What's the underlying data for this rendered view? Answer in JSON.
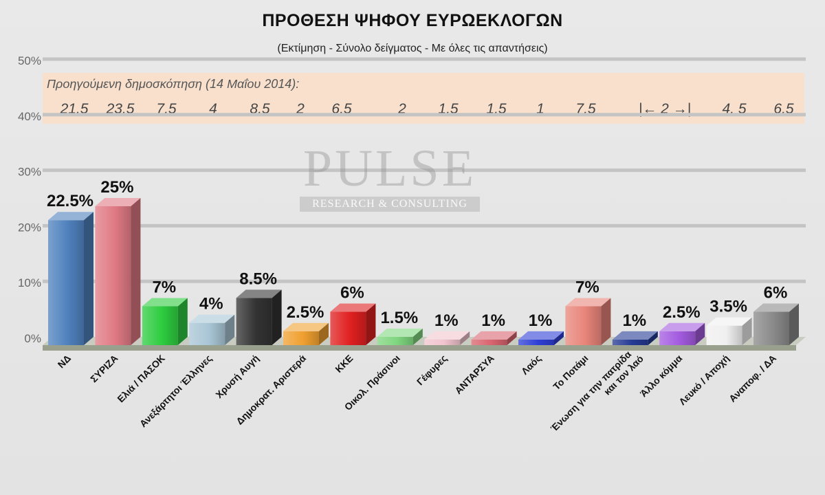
{
  "title": "ΠΡΟΘΕΣΗ ΨΗΦΟΥ ΕΥΡΩΕΚΛΟΓΩΝ",
  "subtitle": "(Εκτίμηση - Σύνολο δείγματος - Με όλες τις απαντήσεις)",
  "previous_poll": {
    "label": "Προηγούμενη δημοσκόπηση  (14 Μαΐου 2014):",
    "values": [
      "21.5",
      "23.5",
      "7.5",
      "4",
      "8.5",
      "2",
      "6.5",
      "2",
      "1.5",
      "1.5",
      "1",
      "7.5",
      "|← 2 →|",
      "4. 5",
      "6.5"
    ]
  },
  "watermark": {
    "main": "PULSE",
    "sub": "RESEARCH & CONSULTING"
  },
  "chart_data": {
    "type": "bar",
    "title": "ΠΡΟΘΕΣΗ ΨΗΦΟΥ ΕΥΡΩΕΚΛΟΓΩΝ",
    "subtitle": "(Εκτίμηση - Σύνολο δείγματος - Με όλες τις απαντήσεις)",
    "categories": [
      "ΝΔ",
      "ΣΥΡΙΖΑ",
      "Ελιά / ΠΑΣΟΚ",
      "Ανεξάρτητοι Έλληνες",
      "Χρυσή Αυγή",
      "Δημοκρατ. Αριστερά",
      "ΚΚΕ",
      "Οικολ. Πράσινοι",
      "Γέφυρες",
      "ΑΝΤΑΡΣΥΑ",
      "Λαός",
      "Το Ποτάμι",
      "Ένωση για την πατρίδα και τον λαό",
      "Άλλο κόμμα",
      "Λευκό / Αποχή",
      "Αναποφ. / ΔΑ"
    ],
    "values": [
      22.5,
      25,
      7,
      4,
      8.5,
      2.5,
      6,
      1.5,
      1,
      1,
      1,
      7,
      1,
      2.5,
      3.5,
      6
    ],
    "data_labels": [
      "22.5%",
      "25%",
      "7%",
      "4%",
      "8.5%",
      "2.5%",
      "6%",
      "1.5%",
      "1%",
      "1%",
      "1%",
      "7%",
      "1%",
      "2.5%",
      "3.5%",
      "6%"
    ],
    "colors": [
      "#4f81bd",
      "#e07a84",
      "#2ecc40",
      "#a9c6d6",
      "#333333",
      "#f0a030",
      "#e02020",
      "#7fd67f",
      "#f2c4cf",
      "#d9646f",
      "#2f3fd6",
      "#e8857a",
      "#253a94",
      "#a45be0",
      "#f0f0f0",
      "#8a8a8a"
    ],
    "yticks": [
      "0%",
      "10%",
      "20%",
      "30%",
      "40%",
      "50%"
    ],
    "ylim": [
      0,
      50
    ],
    "grid": true
  }
}
